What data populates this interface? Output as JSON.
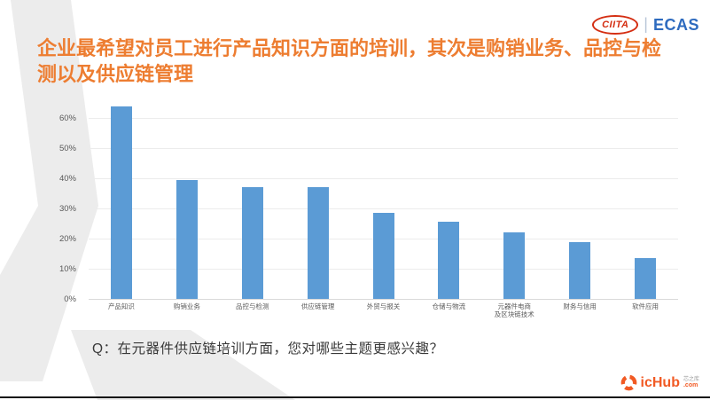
{
  "slide": {
    "title": "企业最希望对员工进行产品知识方面的培训，其次是购销业务、品控与检测以及供应链管理",
    "question": "Q：在元器件供应链培训方面，您对哪些主题更感兴趣？"
  },
  "header_logos": {
    "ciita_text": "CIITA",
    "divider": "|",
    "ecas_text": "ECAS"
  },
  "footer_logo": {
    "name": "icHub",
    "suffix_top": "芯之库",
    "suffix_bottom": ".com"
  },
  "colors": {
    "title_orange": "#ED7D31",
    "bar_blue": "#5B9BD5",
    "axis_text": "#595959",
    "gridline": "#ECECEC",
    "decoration_gray": "#ECECEC",
    "ciita_red": "#D42E12",
    "ecas_blue": "#2E6BBF",
    "ichub_orange": "#F15A24"
  },
  "chart_data": {
    "type": "bar",
    "categories": [
      "产品知识",
      "购销业务",
      "品控与检测",
      "供应链管理",
      "外贸与报关",
      "仓储与物流",
      "元器件电商\n及区块链技术",
      "财务与信用",
      "软件应用"
    ],
    "values": [
      64,
      39.5,
      37,
      37,
      28.5,
      25.5,
      22,
      19,
      13.5
    ],
    "title": "",
    "xlabel": "",
    "ylabel": "",
    "ylim": [
      0,
      66
    ],
    "yticks": [
      0,
      10,
      20,
      30,
      40,
      50,
      60
    ],
    "ytick_labels": [
      "0%",
      "10%",
      "20%",
      "30%",
      "40%",
      "50%",
      "60%"
    ],
    "bar_color": "#5B9BD5",
    "grid": true,
    "legend": false
  }
}
